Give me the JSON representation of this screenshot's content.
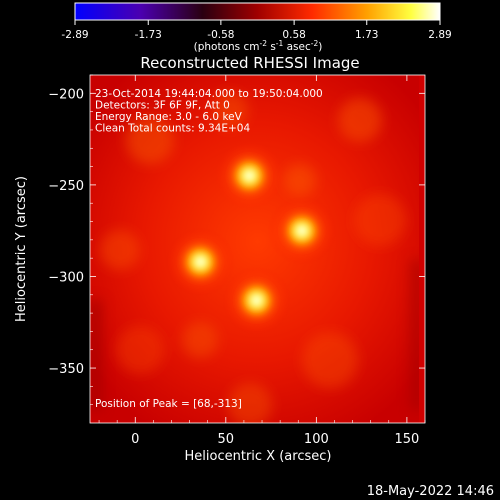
{
  "colorbar": {
    "tick_labels": [
      "-2.89",
      "-1.73",
      "-0.58",
      "0.58",
      "1.73",
      "2.89"
    ],
    "units_parts": [
      "(photons cm",
      "-2",
      " s",
      "-1",
      " asec",
      "-2",
      ")"
    ],
    "range": [
      -2.89,
      2.89
    ],
    "colormap": [
      "#0000ff",
      "#000000",
      "#ff0000",
      "#ffff00",
      "#ffffff"
    ]
  },
  "plot": {
    "title": "Reconstructed RHESSI Image",
    "info_lines": [
      "23-Oct-2014 19:44:04.000 to 19:50:04.000",
      "Detectors: 3F 6F 9F, Att 0",
      "Energy Range: 3.0 - 6.0 keV",
      "Clean     Total counts: 9.34E+04"
    ],
    "peak_label": "Position of Peak = [68,-313]",
    "xlabel": "Heliocentric X (arcsec)",
    "ylabel": "Heliocentric Y (arcsec)",
    "xlim": [
      -25,
      160
    ],
    "ylim": [
      -380,
      -190
    ],
    "xticks": [
      0,
      50,
      100,
      150
    ],
    "yticks": [
      -200,
      -250,
      -300,
      -350
    ],
    "xtick_labels": [
      "0",
      "50",
      "100",
      "150"
    ],
    "ytick_labels": [
      "−200",
      "−250",
      "−300",
      "−350"
    ],
    "sources": [
      {
        "x": 63,
        "y": -245
      },
      {
        "x": 92,
        "y": -275
      },
      {
        "x": 36,
        "y": -292
      },
      {
        "x": 67,
        "y": -313
      }
    ]
  },
  "footer": {
    "date": "18-May-2022 14:46"
  }
}
